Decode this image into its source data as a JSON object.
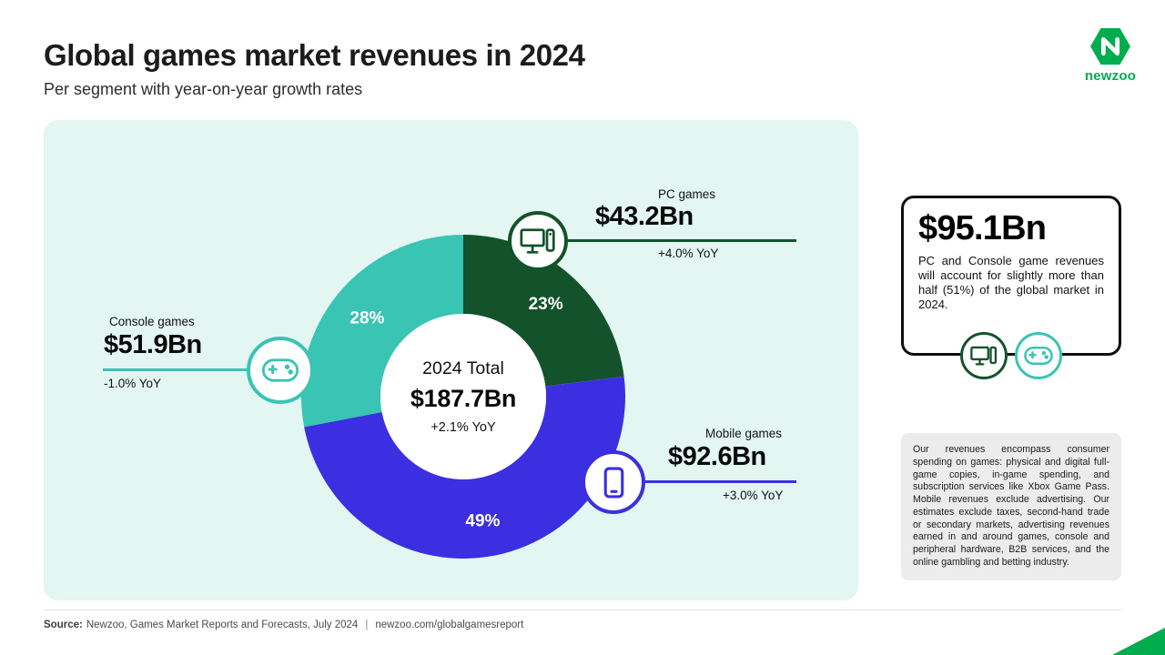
{
  "header": {
    "title": "Global games market revenues in 2024",
    "subtitle": "Per segment with year-on-year growth rates",
    "logo_wordmark": "newzoo"
  },
  "chart_data": {
    "type": "pie",
    "donut": true,
    "title": "Global games market revenues in 2024",
    "direction": "clockwise",
    "start_angle_deg": 0,
    "center": {
      "label": "2024 Total",
      "value": "$187.7Bn",
      "yoy": "+2.1% YoY"
    },
    "total_value_bn_usd": 187.7,
    "total_yoy_pct": 2.1,
    "segments": [
      {
        "name": "PC games",
        "share_pct": 23,
        "value": "$43.2Bn",
        "value_bn_usd": 43.2,
        "yoy": "+4.0% YoY",
        "yoy_pct": 4.0,
        "color": "#14522C",
        "icon": "desktop-icon"
      },
      {
        "name": "Mobile games",
        "share_pct": 49,
        "value": "$92.6Bn",
        "value_bn_usd": 92.6,
        "yoy": "+3.0% YoY",
        "yoy_pct": 3.0,
        "color": "#3B2FE1",
        "icon": "smartphone-icon"
      },
      {
        "name": "Console games",
        "share_pct": 28,
        "value": "$51.9Bn",
        "value_bn_usd": 51.9,
        "yoy": "-1.0% YoY",
        "yoy_pct": -1.0,
        "color": "#39C4B4",
        "icon": "gamepad-icon"
      }
    ]
  },
  "highlight_box": {
    "value": "$95.1Bn",
    "text": "PC and Console game revenues will account for slightly more than half (51%) of the global market in 2024."
  },
  "methodology_box": {
    "text": "Our revenues encompass consumer spending on games: physical and digital full-game copies, in-game spending, and subscription services like Xbox Game Pass. Mobile revenues exclude advertising. Our estimates exclude taxes, second-hand trade or secondary markets, advertising revenues earned in and around games, console and peripheral hardware, B2B services, and the online gambling and betting industry."
  },
  "footer": {
    "source_label": "Source:",
    "source_text": "Newzoo, Games Market Reports and Forecasts, July 2024",
    "separator": "|",
    "link": "newzoo.com/globalgamesreport"
  },
  "colors": {
    "panel_bg": "#E3F6F1",
    "brand_green": "#00AC4E"
  }
}
